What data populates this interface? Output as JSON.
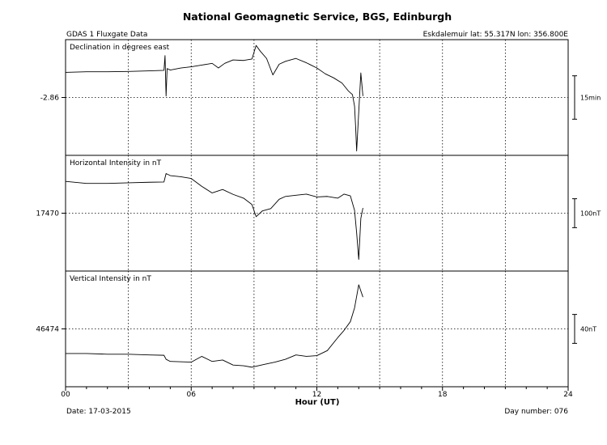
{
  "header": {
    "title": "National Geomagnetic Service, BGS, Edinburgh",
    "left_label": "GDAS 1 Fluxgate Data",
    "right_label": "Eskdalemuir  lat: 55.317N  lon: 356.800E"
  },
  "footer": {
    "date_label": "Date: 17-03-2015",
    "day_label": "Day number:  076"
  },
  "chart_data": {
    "type": "line",
    "xlabel": "Hour (UT)",
    "xlim": [
      0,
      24
    ],
    "x_ticks": [
      0,
      6,
      12,
      18,
      24
    ],
    "x_tick_labels": [
      "00",
      "06",
      "12",
      "18",
      "24"
    ],
    "grid": true,
    "panels": [
      {
        "title": "Declination in degrees east",
        "baseline_label": "-2.86",
        "baseline_value": -2.86,
        "scale_label": "15min",
        "unit": "min",
        "scale_value": 15,
        "y_range_units": [
          -20,
          20
        ],
        "points": [
          [
            0,
            8.7
          ],
          [
            1,
            8.9
          ],
          [
            2,
            8.9
          ],
          [
            3,
            9.0
          ],
          [
            4,
            9.2
          ],
          [
            4.7,
            9.4
          ],
          [
            4.75,
            14.5
          ],
          [
            4.8,
            0.5
          ],
          [
            4.85,
            10
          ],
          [
            5.0,
            9.5
          ],
          [
            5.5,
            10.2
          ],
          [
            6.0,
            10.6
          ],
          [
            6.5,
            11.2
          ],
          [
            7.0,
            11.8
          ],
          [
            7.3,
            10.2
          ],
          [
            7.6,
            11.8
          ],
          [
            8.0,
            13.0
          ],
          [
            8.5,
            12.8
          ],
          [
            8.9,
            13.3
          ],
          [
            9.1,
            18.0
          ],
          [
            9.3,
            16.0
          ],
          [
            9.6,
            13.5
          ],
          [
            9.9,
            7.8
          ],
          [
            10.2,
            11.5
          ],
          [
            10.5,
            12.5
          ],
          [
            11.0,
            13.5
          ],
          [
            11.5,
            12.0
          ],
          [
            12.0,
            10.2
          ],
          [
            12.4,
            8.2
          ],
          [
            12.8,
            6.8
          ],
          [
            13.2,
            5.0
          ],
          [
            13.5,
            2.3
          ],
          [
            13.7,
            1.0
          ],
          [
            13.8,
            -3.0
          ],
          [
            13.85,
            -10.0
          ],
          [
            13.9,
            -18.5
          ],
          [
            14.0,
            -5.0
          ],
          [
            14.1,
            8.5
          ],
          [
            14.2,
            0.5
          ]
        ]
      },
      {
        "title": "Horizontal Intensity in nT",
        "baseline_label": "17470",
        "baseline_value": 17470,
        "scale_label": "100nT",
        "unit": "nT",
        "scale_value": 100,
        "y_range_units": [
          -200,
          200
        ],
        "points": [
          [
            0,
            110
          ],
          [
            1,
            103
          ],
          [
            2,
            103
          ],
          [
            3,
            105
          ],
          [
            4,
            107
          ],
          [
            4.7,
            108
          ],
          [
            4.8,
            137
          ],
          [
            5.0,
            130
          ],
          [
            5.5,
            126
          ],
          [
            6.0,
            120
          ],
          [
            6.5,
            93
          ],
          [
            7.0,
            70
          ],
          [
            7.5,
            82
          ],
          [
            8.0,
            65
          ],
          [
            8.5,
            52
          ],
          [
            8.9,
            30
          ],
          [
            9.1,
            -12
          ],
          [
            9.4,
            8
          ],
          [
            9.8,
            16
          ],
          [
            10.2,
            48
          ],
          [
            10.5,
            58
          ],
          [
            11.0,
            62
          ],
          [
            11.5,
            66
          ],
          [
            12.0,
            56
          ],
          [
            12.5,
            58
          ],
          [
            13.0,
            52
          ],
          [
            13.3,
            66
          ],
          [
            13.6,
            60
          ],
          [
            13.8,
            10
          ],
          [
            13.9,
            -68
          ],
          [
            14.0,
            -160
          ],
          [
            14.1,
            -18
          ],
          [
            14.2,
            18
          ]
        ]
      },
      {
        "title": "Vertical Intensity in nT",
        "baseline_label": "46474",
        "baseline_value": 46474,
        "scale_label": "40nT",
        "unit": "nT",
        "scale_value": 40,
        "y_range_units": [
          -80,
          80
        ],
        "points": [
          [
            0,
            -34
          ],
          [
            1,
            -34
          ],
          [
            2,
            -35
          ],
          [
            3,
            -35
          ],
          [
            4,
            -36
          ],
          [
            4.7,
            -36.5
          ],
          [
            4.8,
            -42
          ],
          [
            5.0,
            -45
          ],
          [
            6.0,
            -46
          ],
          [
            6.5,
            -38
          ],
          [
            7.0,
            -45
          ],
          [
            7.5,
            -43
          ],
          [
            8.0,
            -50
          ],
          [
            8.5,
            -51
          ],
          [
            8.9,
            -53
          ],
          [
            9.2,
            -51
          ],
          [
            9.5,
            -49
          ],
          [
            10.0,
            -46
          ],
          [
            10.5,
            -42
          ],
          [
            11.0,
            -36
          ],
          [
            11.5,
            -38
          ],
          [
            12.0,
            -37
          ],
          [
            12.5,
            -30
          ],
          [
            13.0,
            -12
          ],
          [
            13.3,
            -2
          ],
          [
            13.6,
            10
          ],
          [
            13.8,
            29
          ],
          [
            14.0,
            61
          ],
          [
            14.2,
            44
          ]
        ]
      }
    ]
  }
}
